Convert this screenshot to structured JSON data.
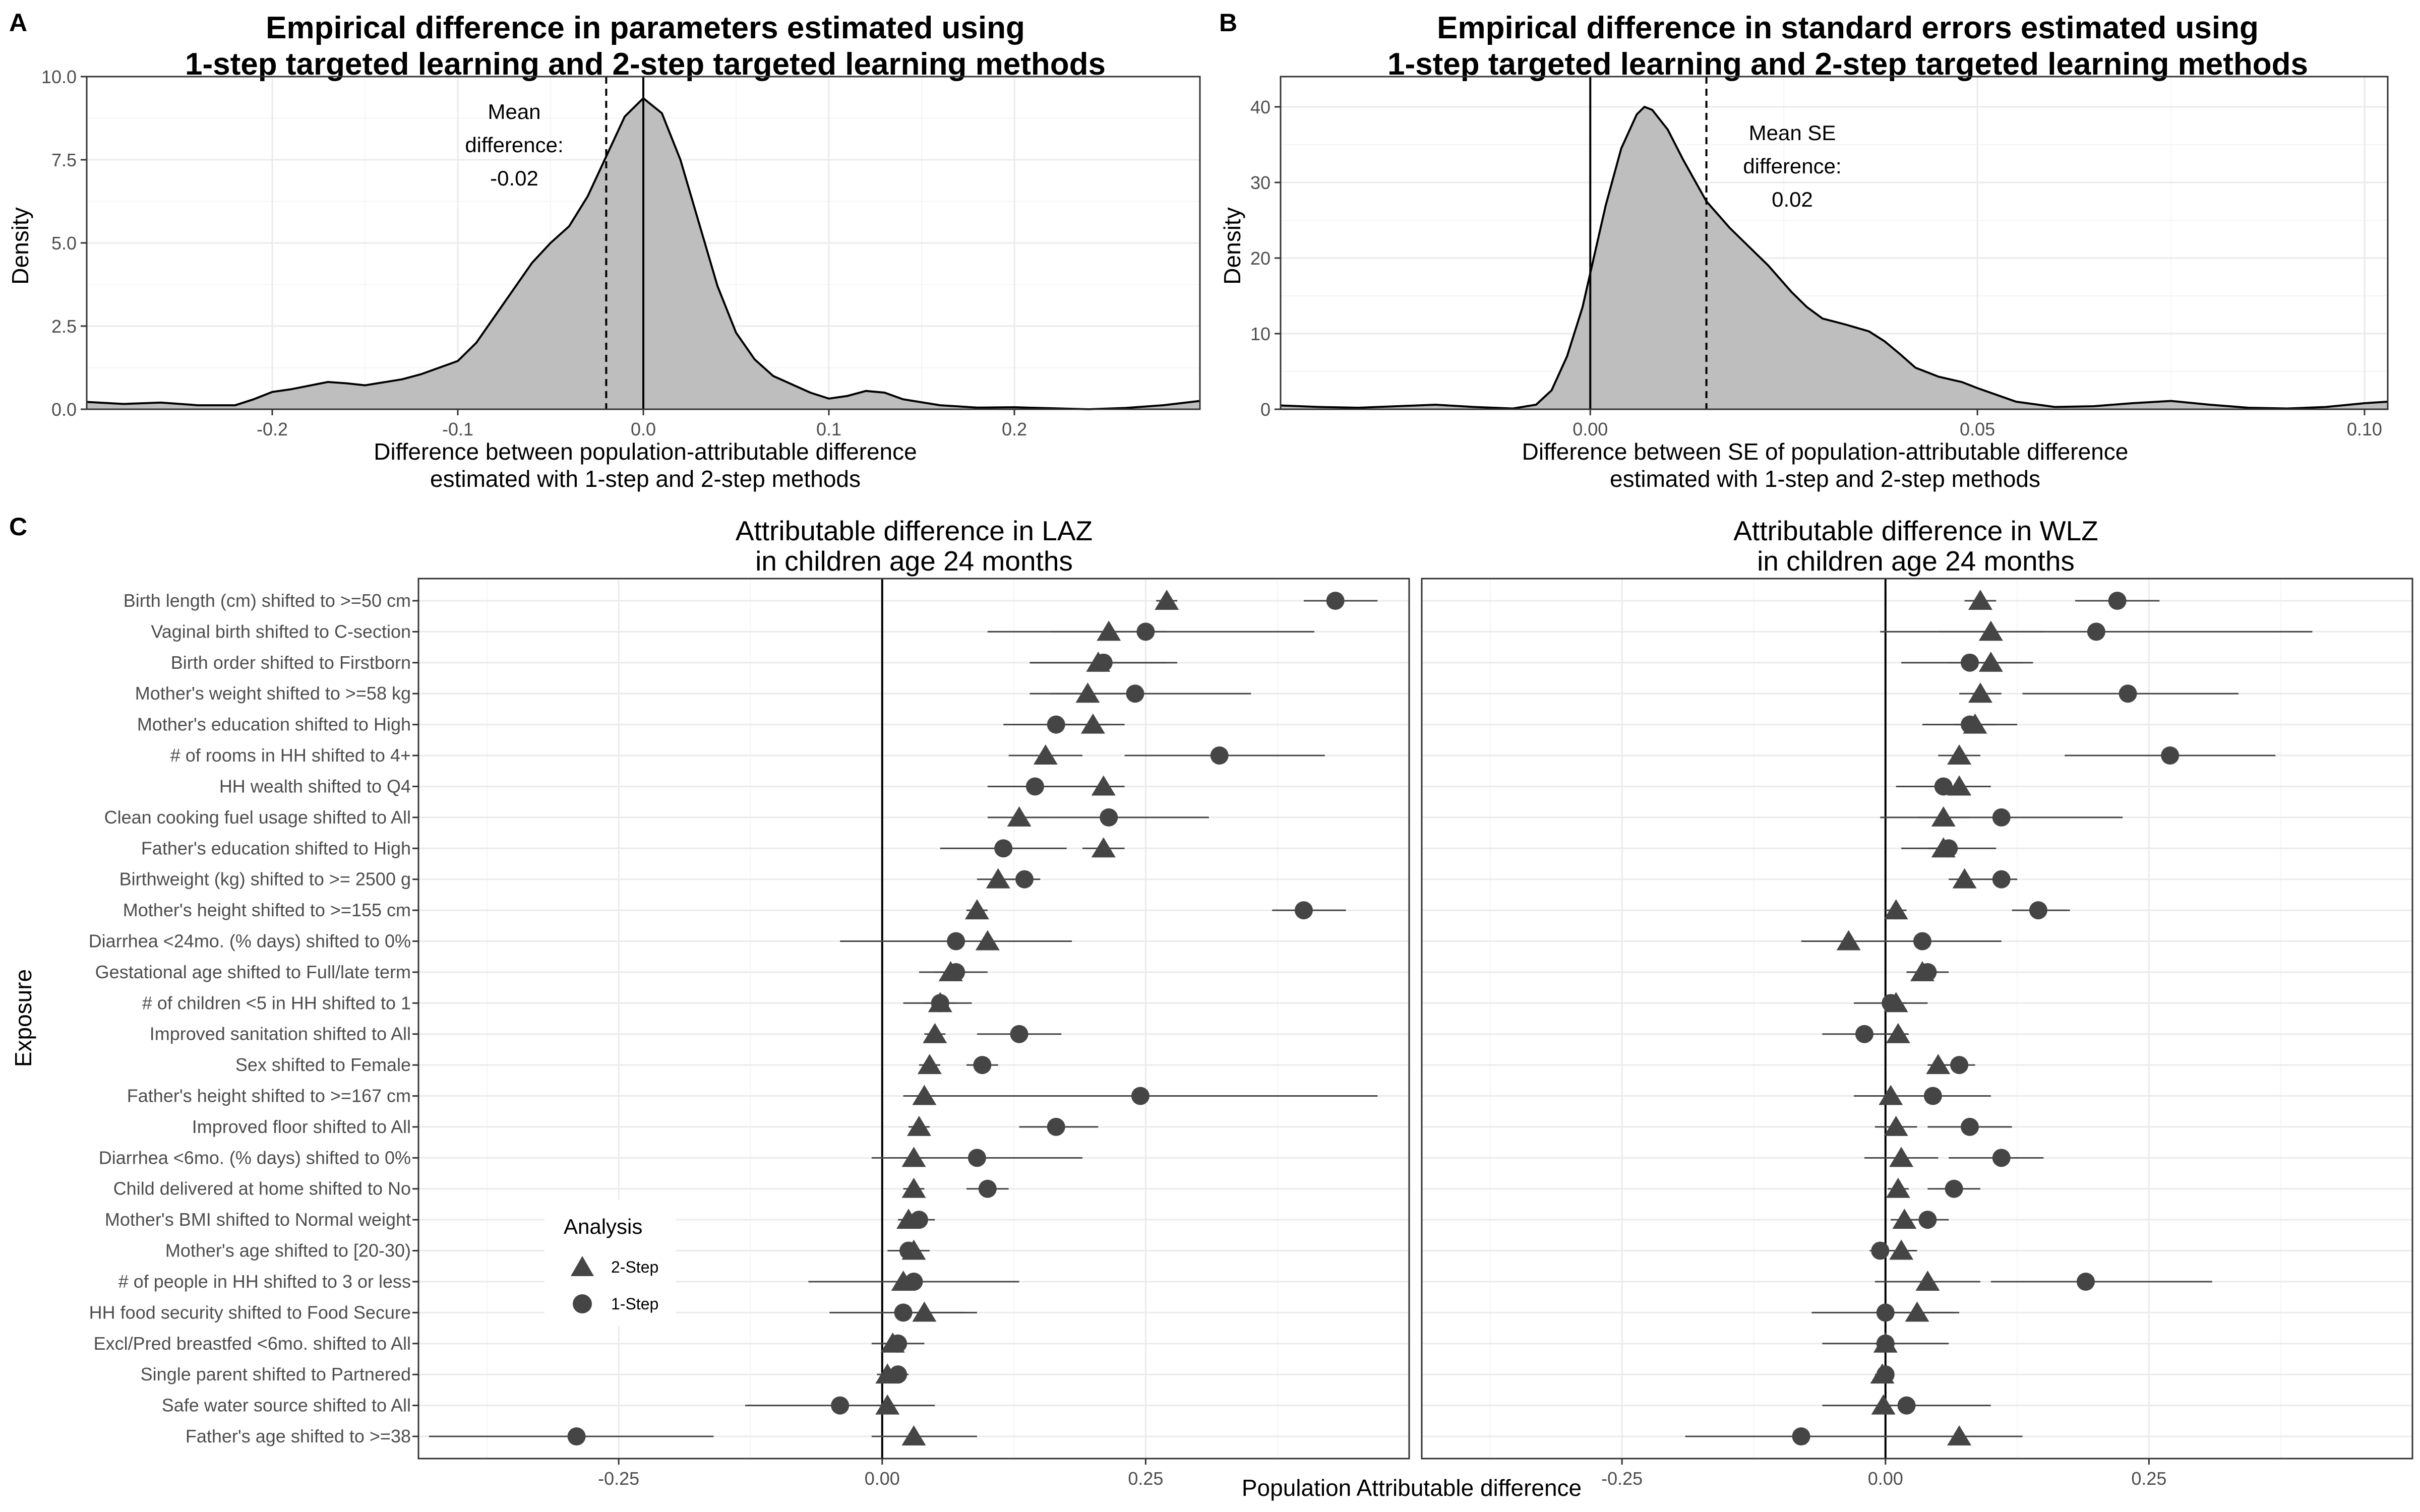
{
  "panels": {
    "a": {
      "label": "A"
    },
    "b": {
      "label": "B"
    },
    "c": {
      "label": "C"
    }
  },
  "colors": {
    "density_fill": "#bebebe",
    "mark": "#454545",
    "grid_major": "#ebebeb",
    "grid_minor": "#f5f5f5",
    "border": "#333333"
  },
  "legend": {
    "title": "Analysis",
    "items": [
      {
        "label": "2-Step",
        "shape": "triangle"
      },
      {
        "label": "1-Step",
        "shape": "circle"
      }
    ]
  },
  "chart_data": [
    {
      "type": "area",
      "title": [
        "Empirical difference in parameters estimated using",
        "1-step targeted learning and 2-step targeted learning methods"
      ],
      "xlabel": [
        "Difference between population-attributable difference",
        "estimated with 1-step and 2-step methods"
      ],
      "ylabel": "Density",
      "xlim": [
        -0.3,
        0.3
      ],
      "ylim": [
        0,
        10
      ],
      "xticks": [
        -0.2,
        -0.1,
        0.0,
        0.1,
        0.2
      ],
      "xtick_labels": [
        "-0.2",
        "-0.1",
        "0.0",
        "0.1",
        "0.2"
      ],
      "yticks": [
        0,
        2.5,
        5,
        7.5,
        10
      ],
      "ytick_labels": [
        "0.0",
        "2.5",
        "5.0",
        "7.5",
        "10.0"
      ],
      "x": [
        -0.3,
        -0.28,
        -0.26,
        -0.24,
        -0.22,
        -0.21,
        -0.2,
        -0.19,
        -0.17,
        -0.16,
        -0.15,
        -0.13,
        -0.12,
        -0.1,
        -0.09,
        -0.08,
        -0.07,
        -0.06,
        -0.05,
        -0.04,
        -0.03,
        -0.02,
        -0.01,
        0.0,
        0.01,
        0.02,
        0.03,
        0.04,
        0.05,
        0.06,
        0.07,
        0.08,
        0.09,
        0.1,
        0.11,
        0.12,
        0.13,
        0.14,
        0.16,
        0.18,
        0.2,
        0.22,
        0.24,
        0.26,
        0.28,
        0.3
      ],
      "y": [
        0.22,
        0.16,
        0.2,
        0.12,
        0.12,
        0.3,
        0.52,
        0.6,
        0.82,
        0.78,
        0.72,
        0.9,
        1.05,
        1.45,
        2.0,
        2.8,
        3.6,
        4.4,
        5.0,
        5.5,
        6.4,
        7.6,
        8.8,
        9.35,
        8.9,
        7.5,
        5.6,
        3.7,
        2.3,
        1.5,
        1.0,
        0.75,
        0.5,
        0.32,
        0.4,
        0.55,
        0.5,
        0.3,
        0.12,
        0.05,
        0.06,
        0.03,
        0.0,
        0.04,
        0.12,
        0.25
      ],
      "vlines": [
        {
          "x": 0.0,
          "style": "solid"
        },
        {
          "x": -0.02,
          "style": "dashed"
        }
      ],
      "annotation": [
        "Mean",
        "difference:",
        "-0.02"
      ]
    },
    {
      "type": "area",
      "title": [
        "Empirical difference in standard errors estimated using",
        "1-step targeted learning and 2-step targeted learning methods"
      ],
      "xlabel": [
        "Difference between SE of population-attributable difference",
        "estimated with 1-step and 2-step methods"
      ],
      "ylabel": "Density",
      "xlim": [
        -0.04,
        0.103
      ],
      "ylim": [
        0,
        44
      ],
      "xticks": [
        0.0,
        0.05,
        0.1
      ],
      "xtick_labels": [
        "0.00",
        "0.05",
        "0.10"
      ],
      "yticks": [
        0,
        10,
        20,
        30,
        40
      ],
      "ytick_labels": [
        "0",
        "10",
        "20",
        "30",
        "40"
      ],
      "x": [
        -0.04,
        -0.035,
        -0.03,
        -0.025,
        -0.02,
        -0.015,
        -0.01,
        -0.007,
        -0.005,
        -0.003,
        -0.001,
        0.0,
        0.002,
        0.004,
        0.006,
        0.007,
        0.008,
        0.01,
        0.012,
        0.015,
        0.018,
        0.02,
        0.023,
        0.026,
        0.028,
        0.03,
        0.033,
        0.036,
        0.038,
        0.04,
        0.042,
        0.045,
        0.048,
        0.05,
        0.055,
        0.06,
        0.065,
        0.07,
        0.075,
        0.08,
        0.085,
        0.09,
        0.095,
        0.1,
        0.103
      ],
      "y": [
        0.5,
        0.3,
        0.2,
        0.4,
        0.6,
        0.3,
        0.1,
        0.6,
        2.5,
        7.0,
        13.5,
        18.0,
        27.0,
        34.5,
        39.0,
        40.0,
        39.6,
        37.0,
        33.0,
        27.5,
        24.0,
        22.0,
        19.0,
        15.5,
        13.5,
        12.0,
        11.2,
        10.3,
        9.0,
        7.3,
        5.5,
        4.3,
        3.6,
        2.8,
        1.0,
        0.3,
        0.4,
        0.8,
        1.1,
        0.6,
        0.2,
        0.1,
        0.3,
        0.8,
        1.0
      ],
      "vlines": [
        {
          "x": 0.0,
          "style": "solid"
        },
        {
          "x": 0.015,
          "style": "dashed"
        }
      ],
      "annotation": [
        "Mean SE",
        "difference:",
        "0.02"
      ]
    },
    {
      "type": "scatter",
      "title": [
        "Attributable difference in LAZ",
        "in children age 24 months"
      ],
      "xlabel": "Population Attributable difference",
      "ylabel": "Exposure",
      "xlim": [
        -0.44,
        0.5
      ],
      "xticks": [
        -0.25,
        0.0,
        0.25
      ],
      "xtick_labels": [
        "-0.25",
        "0.00",
        "0.25"
      ],
      "categories": [
        "Birth length (cm) shifted to >=50 cm",
        "Vaginal birth shifted to C-section",
        "Birth order shifted to Firstborn",
        "Mother's weight shifted to >=58 kg",
        "Mother's education shifted to High",
        "# of rooms in HH shifted to 4+",
        "HH wealth shifted to Q4",
        "Clean cooking fuel usage shifted to All",
        "Father's education shifted to High",
        "Birthweight (kg) shifted to >= 2500 g",
        "Mother's height shifted to >=155 cm",
        "Diarrhea <24mo. (% days) shifted to 0%",
        "Gestational age shifted to Full/late term",
        "# of children <5 in HH shifted to 1",
        "Improved sanitation shifted to All",
        "Sex shifted to Female",
        "Father's height shifted to >=167 cm",
        "Improved floor shifted to All",
        "Diarrhea <6mo. (% days) shifted to 0%",
        "Child delivered at home shifted to No",
        "Mother's BMI shifted to Normal weight",
        "Mother's age shifted to [20-30)",
        "# of people in HH shifted to 3 or less",
        "HH food security shifted to Food Secure",
        "Excl/Pred breastfed <6mo. shifted to All",
        "Single parent shifted to Partnered",
        "Safe water source shifted to All",
        "Father's age shifted to >=38"
      ],
      "series": [
        {
          "name": "2-Step",
          "shape": "triangle",
          "values": [
            0.27,
            0.215,
            0.205,
            0.195,
            0.2,
            0.155,
            0.21,
            0.13,
            0.21,
            0.11,
            0.09,
            0.1,
            0.065,
            0.055,
            0.05,
            0.045,
            0.04,
            0.035,
            0.03,
            0.03,
            0.025,
            0.03,
            0.02,
            0.04,
            0.01,
            0.005,
            0.005,
            0.03
          ],
          "lower": [
            0.26,
            0.16,
            0.14,
            0.16,
            0.17,
            0.12,
            0.19,
            0.1,
            0.19,
            0.09,
            0.08,
            0.05,
            0.05,
            0.04,
            0.04,
            0.035,
            0.03,
            0.025,
            0.02,
            0.02,
            0.015,
            0.02,
            -0.07,
            0.02,
            0.0,
            -0.005,
            -0.005,
            -0.01
          ],
          "upper": [
            0.28,
            0.27,
            0.27,
            0.23,
            0.23,
            0.19,
            0.23,
            0.16,
            0.23,
            0.13,
            0.1,
            0.15,
            0.08,
            0.07,
            0.06,
            0.055,
            0.05,
            0.045,
            0.04,
            0.04,
            0.035,
            0.04,
            0.1,
            0.08,
            0.02,
            0.015,
            0.015,
            0.09
          ]
        },
        {
          "name": "1-Step",
          "shape": "circle",
          "values": [
            0.43,
            0.25,
            0.21,
            0.24,
            0.165,
            0.32,
            0.145,
            0.215,
            0.115,
            0.135,
            0.4,
            0.07,
            0.07,
            0.055,
            0.13,
            0.095,
            0.245,
            0.165,
            0.09,
            0.1,
            0.035,
            0.025,
            0.03,
            0.02,
            0.015,
            0.015,
            -0.04,
            -0.29
          ],
          "lower": [
            0.4,
            0.1,
            0.14,
            0.14,
            0.115,
            0.23,
            0.1,
            0.16,
            0.055,
            0.12,
            0.37,
            -0.04,
            0.035,
            0.02,
            0.09,
            0.08,
            0.02,
            0.13,
            -0.01,
            0.08,
            0.02,
            0.005,
            -0.07,
            -0.05,
            -0.01,
            0.005,
            -0.13,
            -0.43
          ],
          "upper": [
            0.47,
            0.41,
            0.28,
            0.35,
            0.215,
            0.42,
            0.19,
            0.31,
            0.175,
            0.15,
            0.44,
            0.18,
            0.1,
            0.085,
            0.17,
            0.11,
            0.47,
            0.205,
            0.19,
            0.12,
            0.05,
            0.045,
            0.13,
            0.09,
            0.04,
            0.025,
            0.05,
            -0.16
          ]
        }
      ]
    },
    {
      "type": "scatter",
      "title": [
        "Attributable difference in WLZ",
        "in children age 24 months"
      ],
      "xlabel": "Population Attributable difference",
      "ylabel": "Exposure",
      "xlim": [
        -0.44,
        0.5
      ],
      "xticks": [
        -0.25,
        0.0,
        0.25
      ],
      "xtick_labels": [
        "-0.25",
        "0.00",
        "0.25"
      ],
      "series": [
        {
          "name": "2-Step",
          "shape": "triangle",
          "values": [
            0.09,
            0.1,
            0.1,
            0.09,
            0.085,
            0.07,
            0.07,
            0.055,
            0.055,
            0.075,
            0.01,
            -0.035,
            0.035,
            0.01,
            0.012,
            0.05,
            0.005,
            0.01,
            0.015,
            0.012,
            0.018,
            0.015,
            0.04,
            0.03,
            0.0,
            -0.003,
            -0.002,
            0.07
          ],
          "lower": [
            0.075,
            0.05,
            0.06,
            0.07,
            0.065,
            0.05,
            0.05,
            0.03,
            0.04,
            0.06,
            0.0,
            -0.08,
            0.02,
            0.0,
            0.002,
            0.04,
            -0.03,
            -0.01,
            -0.02,
            0.002,
            0.005,
            0.0,
            -0.01,
            -0.01,
            -0.01,
            -0.01,
            -0.01,
            0.01
          ],
          "upper": [
            0.105,
            0.15,
            0.14,
            0.11,
            0.105,
            0.09,
            0.09,
            0.08,
            0.07,
            0.09,
            0.02,
            0.01,
            0.05,
            0.02,
            0.022,
            0.06,
            0.04,
            0.03,
            0.05,
            0.022,
            0.03,
            0.03,
            0.09,
            0.07,
            0.01,
            0.004,
            0.006,
            0.13
          ]
        },
        {
          "name": "1-Step",
          "shape": "circle",
          "values": [
            0.22,
            0.2,
            0.08,
            0.23,
            0.08,
            0.27,
            0.055,
            0.11,
            0.06,
            0.11,
            0.145,
            0.035,
            0.04,
            0.005,
            -0.02,
            0.07,
            0.045,
            0.08,
            0.11,
            0.065,
            0.04,
            -0.005,
            0.19,
            0.0,
            0.0,
            0.0,
            0.02,
            -0.08
          ],
          "lower": [
            0.18,
            -0.005,
            0.015,
            0.13,
            0.035,
            0.17,
            0.01,
            -0.005,
            0.015,
            0.09,
            0.12,
            -0.04,
            0.02,
            -0.03,
            -0.06,
            0.055,
            -0.015,
            0.04,
            0.06,
            0.04,
            0.02,
            -0.015,
            0.1,
            -0.07,
            -0.06,
            -0.005,
            -0.06,
            -0.19
          ],
          "upper": [
            0.26,
            0.405,
            0.13,
            0.335,
            0.125,
            0.37,
            0.1,
            0.225,
            0.105,
            0.125,
            0.175,
            0.11,
            0.06,
            0.04,
            0.02,
            0.085,
            0.1,
            0.12,
            0.15,
            0.09,
            0.06,
            0.005,
            0.31,
            0.065,
            0.06,
            0.005,
            0.1,
            0.03
          ]
        }
      ]
    }
  ]
}
